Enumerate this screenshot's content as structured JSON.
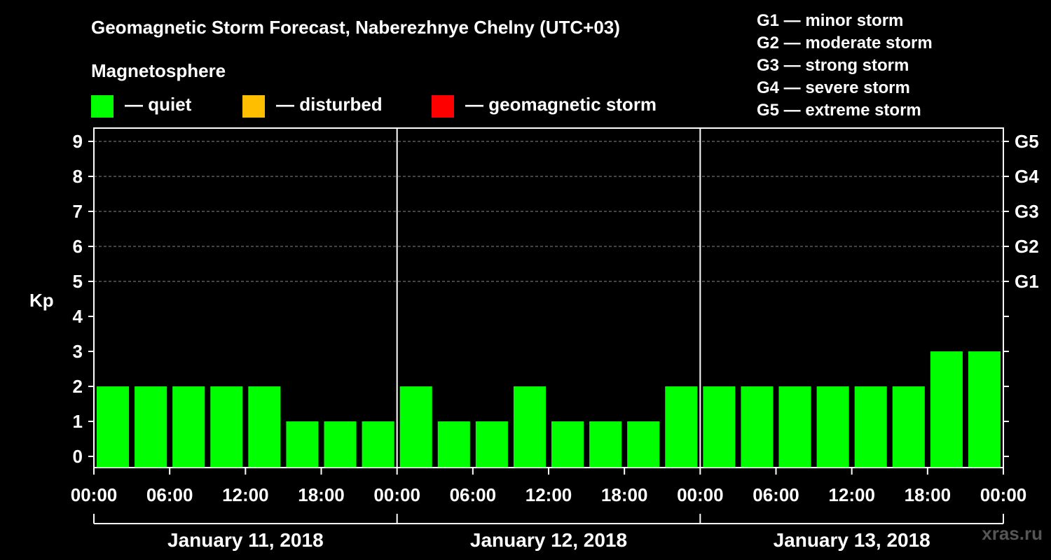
{
  "header": {
    "title": "Geomagnetic Storm Forecast, Naberezhnye Chelny (UTC+03)",
    "subtitle": "Magnetosphere"
  },
  "legend": [
    {
      "label": "— quiet",
      "color": "#00ff00"
    },
    {
      "label": "— disturbed",
      "color": "#ffbf00"
    },
    {
      "label": "— geomagnetic storm",
      "color": "#ff0000"
    }
  ],
  "storm_scale": [
    "G1 — minor storm",
    "G2 — moderate storm",
    "G3 — strong storm",
    "G4 — severe storm",
    "G5 — extreme storm"
  ],
  "watermark": "xras.ru",
  "chart_data": {
    "type": "bar",
    "title": "Geomagnetic Storm Forecast, Naberezhnye Chelny (UTC+03)",
    "ylabel": "Kp",
    "ylim": [
      0,
      9
    ],
    "yticks": [
      "0",
      "1",
      "2",
      "3",
      "4",
      "5",
      "6",
      "7",
      "8",
      "9"
    ],
    "right_ticks": [
      {
        "kp": 5,
        "label": "G1"
      },
      {
        "kp": 6,
        "label": "G2"
      },
      {
        "kp": 7,
        "label": "G3"
      },
      {
        "kp": 8,
        "label": "G4"
      },
      {
        "kp": 9,
        "label": "G5"
      }
    ],
    "xticks": [
      "00:00",
      "06:00",
      "12:00",
      "18:00",
      "00:00",
      "06:00",
      "12:00",
      "18:00",
      "00:00",
      "06:00",
      "12:00",
      "18:00",
      "00:00"
    ],
    "days": [
      "January 11, 2018",
      "January 12, 2018",
      "January 13, 2018"
    ],
    "grid": true,
    "series": [
      {
        "values": [
          2,
          2,
          2,
          2,
          2,
          1,
          1,
          1,
          2,
          1,
          1,
          2,
          1,
          1,
          1,
          2,
          2,
          2,
          2,
          2,
          2,
          2,
          3,
          3
        ]
      }
    ],
    "bar_color": "#00ff00"
  }
}
